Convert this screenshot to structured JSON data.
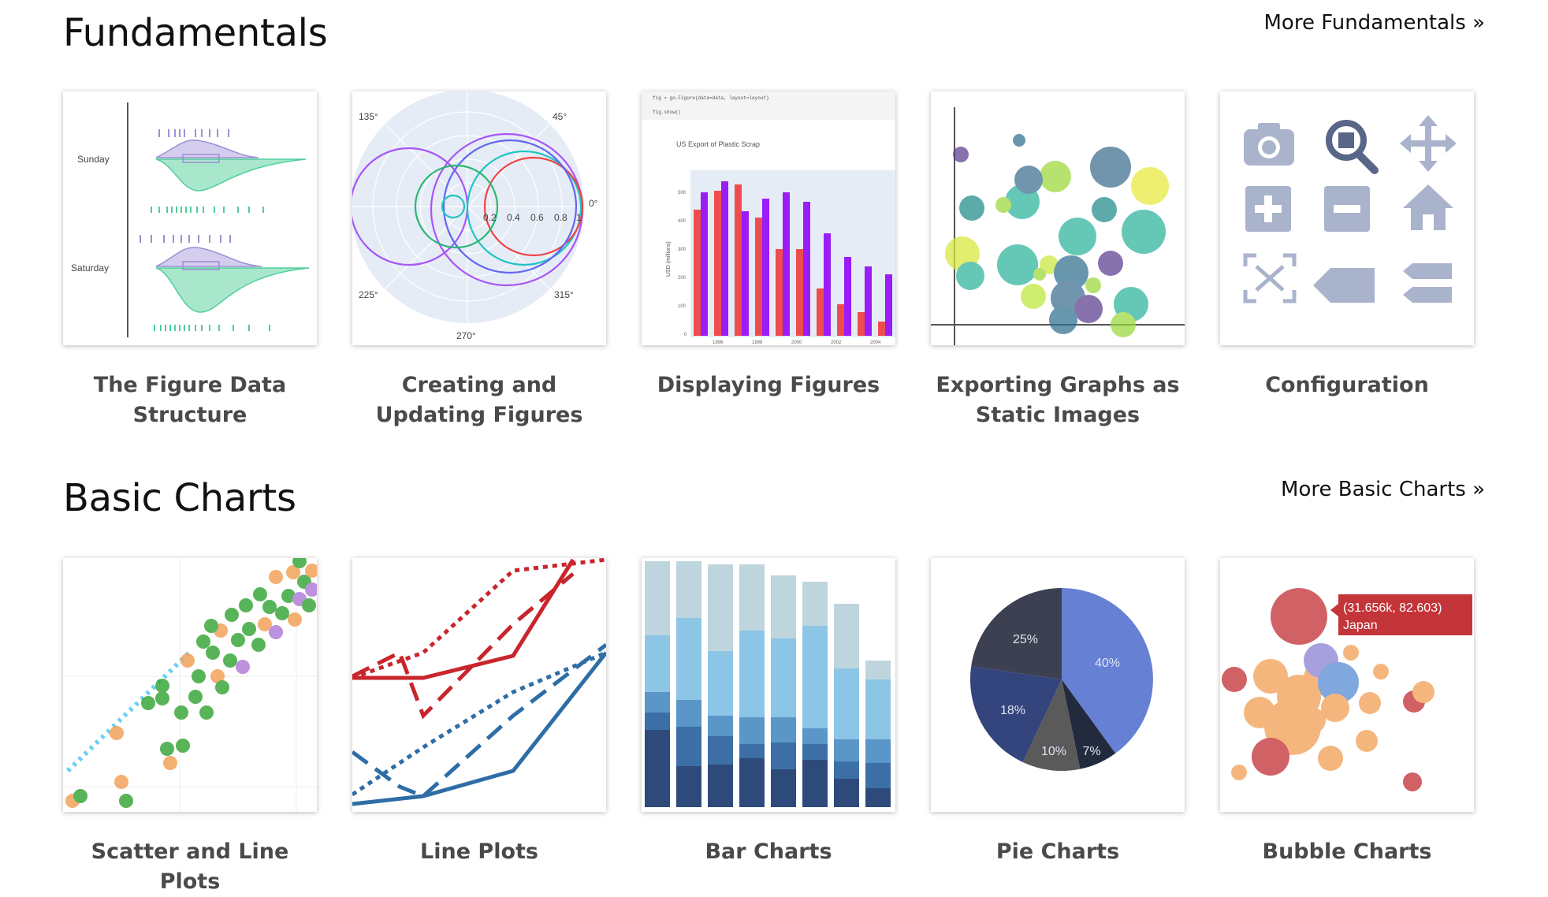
{
  "sections": [
    {
      "title": "Fundamentals",
      "more_link": "More Fundamentals »",
      "cards": [
        {
          "label": "The Figure Data Structure",
          "thumb": {
            "labels": [
              "Sunday",
              "Saturday"
            ]
          }
        },
        {
          "label": "Creating and Updating Figures",
          "thumb": {
            "angles": [
              "135°",
              "45°",
              "0°",
              "225°",
              "315°",
              "270°"
            ],
            "radial_ticks": [
              "0.2",
              "0.4",
              "0.6",
              "0.8",
              "1"
            ]
          }
        },
        {
          "label": "Displaying Figures",
          "thumb": {
            "code_line_1": "fig = go.Figure(data=data, layout=layout)",
            "code_line_2": "fig.show()",
            "title": "US Export of Plastic Scrap",
            "ylabel": "USD (millions)",
            "yticks": [
              "500",
              "400",
              "300",
              "200",
              "100",
              "0"
            ],
            "xticks": [
              "1996",
              "1998",
              "2000",
              "2002",
              "2004"
            ]
          }
        },
        {
          "label": "Exporting Graphs as Static Images"
        },
        {
          "label": "Configuration",
          "thumb": {
            "icons": [
              "camera-icon",
              "zoom-icon",
              "pan-icon",
              "zoom-in-icon",
              "zoom-out-icon",
              "home-icon",
              "autoscale-icon",
              "hover-closest-icon",
              "hover-compare-icon"
            ]
          }
        }
      ]
    },
    {
      "title": "Basic Charts",
      "more_link": "More Basic Charts »",
      "cards": [
        {
          "label": "Scatter and Line Plots"
        },
        {
          "label": "Line Plots"
        },
        {
          "label": "Bar Charts"
        },
        {
          "label": "Pie Charts",
          "thumb": {
            "slices": [
              "40%",
              "7%",
              "10%",
              "18%",
              "25%"
            ]
          }
        },
        {
          "label": "Bubble Charts",
          "thumb": {
            "tooltip_value": "(31.656k, 82.603)",
            "tooltip_name": "Japan"
          }
        }
      ]
    }
  ]
}
